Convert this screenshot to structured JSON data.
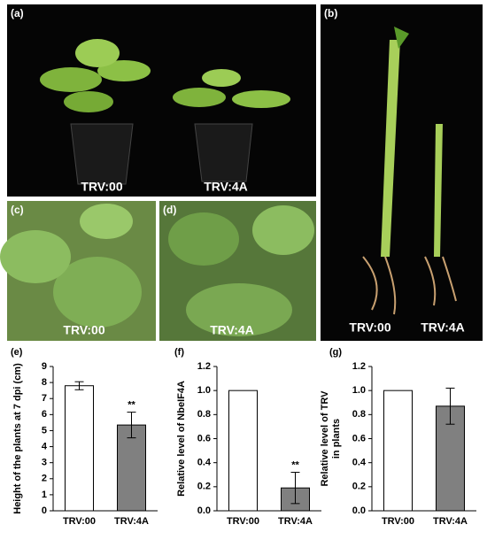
{
  "panels": [
    {
      "label": "(a)",
      "captions": [
        "TRV:00",
        "TRV:4A"
      ]
    },
    {
      "label": "(b)",
      "captions": [
        "TRV:00",
        "TRV:4A"
      ]
    },
    {
      "label": "(c)",
      "captions": [
        "TRV:00"
      ]
    },
    {
      "label": "(d)",
      "captions": [
        "TRV:4A"
      ]
    }
  ],
  "chart_data": [
    {
      "type": "bar",
      "label": "(e)",
      "ylabel": [
        "Height of the plants at 7 dpi (cm)"
      ],
      "categories": [
        "TRV:00",
        "TRV:4A"
      ],
      "values": [
        7.8,
        5.35
      ],
      "errors": [
        0.25,
        0.8
      ],
      "significance": [
        null,
        "**"
      ],
      "colors": [
        "#ffffff",
        "#808080"
      ],
      "ylim": [
        0,
        9
      ],
      "yticks": [
        0,
        1,
        2,
        3,
        4,
        5,
        6,
        7,
        8,
        9
      ]
    },
    {
      "type": "bar",
      "label": "(f)",
      "ylabel": [
        "Relative level of NbeIF4A"
      ],
      "categories": [
        "TRV:00",
        "TRV:4A"
      ],
      "values": [
        1.0,
        0.19
      ],
      "errors": [
        null,
        0.13
      ],
      "significance": [
        null,
        "**"
      ],
      "colors": [
        "#ffffff",
        "#808080"
      ],
      "ylim": [
        0,
        1.2
      ],
      "yticks": [
        {
          "value": 0,
          "label": "0.0"
        },
        0.2,
        0.4,
        0.6,
        0.8,
        {
          "value": 1,
          "label": "1.0"
        },
        1.2
      ]
    },
    {
      "type": "bar",
      "label": "(g)",
      "ylabel": [
        "Relative level of TRV",
        "in plants"
      ],
      "categories": [
        "TRV:00",
        "TRV:4A"
      ],
      "values": [
        1.0,
        0.87
      ],
      "errors": [
        null,
        0.15
      ],
      "significance": [
        null,
        null
      ],
      "colors": [
        "#ffffff",
        "#808080"
      ],
      "ylim": [
        0,
        1.2
      ],
      "yticks": [
        {
          "value": 0,
          "label": "0.0"
        },
        0.2,
        0.4,
        0.6,
        0.8,
        {
          "value": 1,
          "label": "1.0"
        },
        1.2
      ]
    }
  ]
}
